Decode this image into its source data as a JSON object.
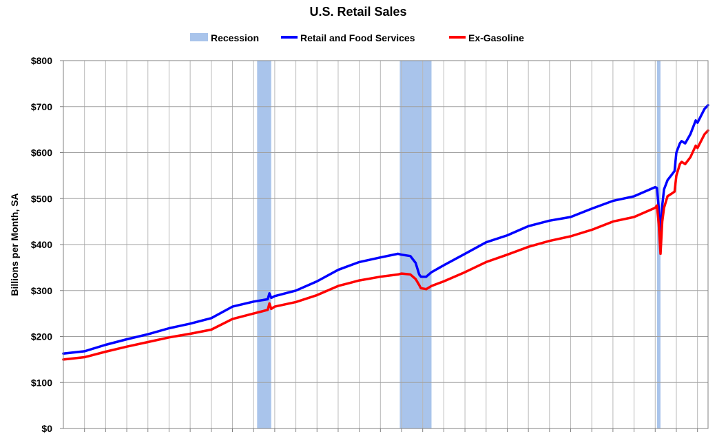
{
  "chart_data": {
    "type": "line",
    "title": "U.S. Retail Sales",
    "xlabel": "",
    "ylabel": "Billions per Month, SA",
    "ylim": [
      0,
      800
    ],
    "xlim": [
      "1992-01",
      "2022-07"
    ],
    "y_ticks": [
      0,
      100,
      200,
      300,
      400,
      500,
      600,
      700,
      800
    ],
    "y_tick_labels": [
      "$0",
      "$100",
      "$200",
      "$300",
      "$400",
      "$500",
      "$600",
      "$700",
      "$800"
    ],
    "grid": true,
    "legend_position": "top",
    "legend": [
      {
        "label": "Recession",
        "kind": "band",
        "color": "#a9c4eb"
      },
      {
        "label": "Retail and Food Services",
        "kind": "line",
        "color": "#0000ff"
      },
      {
        "label": "Ex-Gasoline",
        "kind": "line",
        "color": "#ff0000"
      }
    ],
    "recessions": [
      {
        "start": "2001-03",
        "end": "2001-11"
      },
      {
        "start": "2007-12",
        "end": "2009-06"
      },
      {
        "start": "2020-02",
        "end": "2020-04"
      }
    ],
    "series": [
      {
        "name": "Retail and Food Services",
        "color": "#0000ff",
        "x": [
          "1992-01",
          "1993-01",
          "1994-01",
          "1995-01",
          "1996-01",
          "1997-01",
          "1998-01",
          "1999-01",
          "2000-01",
          "2001-01",
          "2001-09",
          "2001-10",
          "2001-11",
          "2002-01",
          "2003-01",
          "2004-01",
          "2005-01",
          "2006-01",
          "2007-01",
          "2007-11",
          "2008-01",
          "2008-06",
          "2008-09",
          "2008-11",
          "2008-12",
          "2009-03",
          "2009-06",
          "2010-01",
          "2011-01",
          "2012-01",
          "2013-01",
          "2014-01",
          "2015-01",
          "2016-01",
          "2017-01",
          "2018-01",
          "2019-01",
          "2020-01",
          "2020-02",
          "2020-03",
          "2020-04",
          "2020-05",
          "2020-06",
          "2020-08",
          "2020-10",
          "2020-12",
          "2021-01",
          "2021-03",
          "2021-04",
          "2021-06",
          "2021-09",
          "2021-12",
          "2022-01",
          "2022-03",
          "2022-05",
          "2022-07"
        ],
        "values": [
          163,
          168,
          182,
          194,
          205,
          218,
          228,
          240,
          265,
          276,
          281,
          294,
          284,
          288,
          300,
          320,
          345,
          362,
          372,
          380,
          378,
          375,
          360,
          335,
          330,
          330,
          340,
          355,
          380,
          405,
          420,
          440,
          452,
          460,
          478,
          495,
          505,
          525,
          523,
          480,
          418,
          485,
          520,
          540,
          550,
          560,
          600,
          620,
          625,
          620,
          640,
          670,
          665,
          680,
          695,
          703
        ]
      },
      {
        "name": "Ex-Gasoline",
        "color": "#ff0000",
        "x": [
          "1992-01",
          "1993-01",
          "1994-01",
          "1995-01",
          "1996-01",
          "1997-01",
          "1998-01",
          "1999-01",
          "2000-01",
          "2001-01",
          "2001-09",
          "2001-10",
          "2001-11",
          "2002-01",
          "2003-01",
          "2004-01",
          "2005-01",
          "2006-01",
          "2007-01",
          "2007-11",
          "2008-01",
          "2008-06",
          "2008-09",
          "2008-11",
          "2008-12",
          "2009-03",
          "2009-06",
          "2010-01",
          "2011-01",
          "2012-01",
          "2013-01",
          "2014-01",
          "2015-01",
          "2016-01",
          "2017-01",
          "2018-01",
          "2019-01",
          "2020-01",
          "2020-02",
          "2020-03",
          "2020-04",
          "2020-05",
          "2020-06",
          "2020-08",
          "2020-10",
          "2020-12",
          "2021-01",
          "2021-03",
          "2021-04",
          "2021-06",
          "2021-09",
          "2021-12",
          "2022-01",
          "2022-03",
          "2022-05",
          "2022-07"
        ],
        "values": [
          150,
          155,
          167,
          178,
          188,
          198,
          206,
          215,
          238,
          250,
          258,
          272,
          260,
          265,
          275,
          290,
          310,
          322,
          330,
          335,
          337,
          335,
          325,
          312,
          305,
          303,
          310,
          320,
          340,
          362,
          378,
          395,
          408,
          418,
          432,
          450,
          460,
          480,
          485,
          445,
          380,
          450,
          480,
          505,
          510,
          515,
          550,
          575,
          580,
          575,
          590,
          615,
          610,
          625,
          640,
          648
        ]
      }
    ]
  }
}
